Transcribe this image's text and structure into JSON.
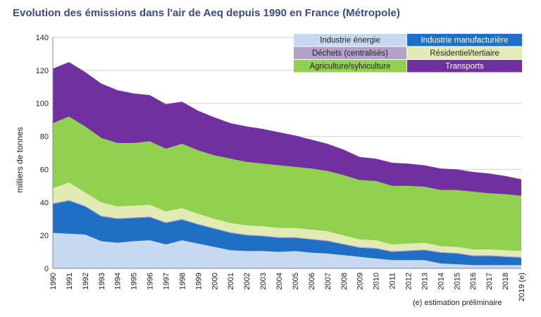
{
  "title": "Evolution des émissions dans l'air de Aeq depuis 1990 en France (Métropole)",
  "note": "(e) estimation préliminaire",
  "chart_data": {
    "type": "area",
    "stacked": true,
    "title": "Evolution des émissions dans l'air de Aeq depuis 1990 en France (Métropole)",
    "xlabel": "",
    "ylabel": "milliers de tonnes",
    "ylim": [
      0,
      140
    ],
    "yticks": [
      0,
      20,
      40,
      60,
      80,
      100,
      120,
      140
    ],
    "grid": true,
    "legend_position": "top-right",
    "categories": [
      "1990",
      "1991",
      "1992",
      "1993",
      "1994",
      "1995",
      "1996",
      "1997",
      "1998",
      "1999",
      "2000",
      "2001",
      "2002",
      "2003",
      "2004",
      "2005",
      "2006",
      "2007",
      "2008",
      "2009",
      "2010",
      "2011",
      "2012",
      "2013",
      "2014",
      "2015",
      "2016",
      "2017",
      "2018",
      "2019 (e)"
    ],
    "series": [
      {
        "name": "Industrie énergie",
        "color": "#c6d9f1",
        "values": [
          21.5,
          21,
          20.5,
          16.5,
          15.5,
          16.5,
          17,
          14.5,
          17,
          15,
          13,
          11,
          10.5,
          10.5,
          10,
          10.5,
          9.5,
          9,
          8,
          7,
          6,
          5,
          5,
          5,
          3,
          2.5,
          2,
          2,
          2,
          2
        ]
      },
      {
        "name": "Industrie manufacturière",
        "color": "#1f6fc5",
        "values": [
          17.5,
          20,
          17,
          15,
          14.5,
          14,
          14,
          13,
          12.5,
          11.5,
          11,
          10.5,
          9.5,
          9,
          8.5,
          8,
          8,
          7.5,
          6.5,
          5.5,
          6,
          5,
          5.5,
          6,
          6.5,
          6.5,
          5.5,
          5.5,
          5,
          4.5
        ]
      },
      {
        "name": "Déchets (centralisés)",
        "color": "#b3a2c7",
        "values": [
          0.5,
          0.5,
          0.5,
          0.5,
          0.5,
          0.5,
          0.5,
          0.5,
          0.5,
          0.5,
          0.5,
          0.5,
          0.5,
          0.5,
          0.5,
          0.5,
          0.5,
          0.5,
          0.5,
          0.5,
          0.5,
          0.5,
          0.5,
          0.5,
          0.5,
          0.5,
          0.5,
          0.5,
          0.5,
          0.5
        ]
      },
      {
        "name": "Résidentiel/tertiaire",
        "color": "#e3ebb5",
        "values": [
          9,
          10.5,
          8,
          8,
          7,
          7,
          7,
          6.5,
          6.5,
          6,
          5.5,
          5.5,
          5.5,
          5.5,
          5.5,
          5.5,
          5.5,
          5.5,
          5,
          4.5,
          4.5,
          4,
          4,
          4,
          3.5,
          3.5,
          3.5,
          3.5,
          3.5,
          3.5
        ]
      },
      {
        "name": "Agriculture/sylviculture",
        "color": "#92d050",
        "values": [
          39.5,
          40,
          40,
          39,
          38.5,
          38,
          38.5,
          38,
          39,
          38.5,
          38.5,
          39,
          38.5,
          38,
          38,
          37,
          37,
          36.5,
          36.5,
          36,
          36,
          35.5,
          35,
          34,
          34,
          34.5,
          35,
          34,
          34,
          33.5
        ]
      },
      {
        "name": "Transports",
        "color": "#7030a0",
        "values": [
          33,
          33,
          33,
          33,
          32,
          30,
          28,
          27,
          25.5,
          24,
          23,
          21.5,
          21.5,
          21,
          20,
          19,
          17.5,
          16.5,
          15.5,
          14,
          13.5,
          14,
          13.5,
          13,
          13,
          12.5,
          12,
          12,
          11,
          10
        ]
      }
    ]
  }
}
